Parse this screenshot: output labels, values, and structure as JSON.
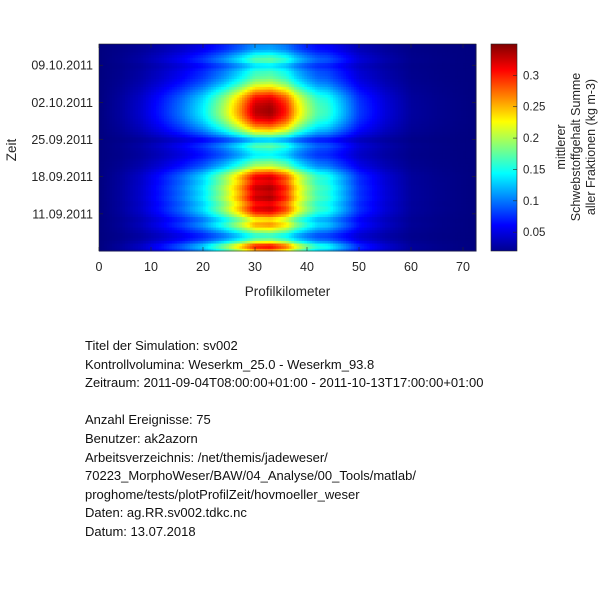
{
  "chart_data": {
    "type": "heatmap",
    "xlabel": "Profilkilometer",
    "ylabel": "Zeit",
    "x_ticks": [
      0,
      10,
      20,
      30,
      40,
      50,
      60,
      70
    ],
    "xlim": [
      0,
      72.5
    ],
    "y_ticks": [
      "11.09.2011",
      "18.09.2011",
      "25.09.2011",
      "02.10.2011",
      "09.10.2011"
    ],
    "ylim": [
      "2011-09-04",
      "2011-10-13"
    ],
    "colorbar": {
      "label_lines": [
        "mittlerer",
        "Schwebstoffgehalt Summe",
        "aller Fraktionen (kg m-3)"
      ],
      "ticks": [
        0.05,
        0.1,
        0.15,
        0.2,
        0.25,
        0.3
      ],
      "tick_labels": [
        "0.05",
        "0.1",
        "0.15",
        "0.2",
        "0.25",
        "0.3"
      ],
      "range": [
        0.02,
        0.35
      ],
      "colormap": "jet"
    },
    "bands": [
      {
        "t": "2011-09-04",
        "a": 0.72
      },
      {
        "t": "2011-09-05",
        "a": 0.95
      },
      {
        "t": "2011-09-06",
        "a": 0.55
      },
      {
        "t": "2011-09-07",
        "a": 0.42
      },
      {
        "t": "2011-09-08",
        "a": 0.6
      },
      {
        "t": "2011-09-09",
        "a": 0.78
      },
      {
        "t": "2011-09-10",
        "a": 0.65
      },
      {
        "t": "2011-09-11",
        "a": 0.85
      },
      {
        "t": "2011-09-12",
        "a": 0.97
      },
      {
        "t": "2011-09-13",
        "a": 0.9
      },
      {
        "t": "2011-09-14",
        "a": 1.0
      },
      {
        "t": "2011-09-15",
        "a": 0.95
      },
      {
        "t": "2011-09-16",
        "a": 1.0
      },
      {
        "t": "2011-09-17",
        "a": 0.92
      },
      {
        "t": "2011-09-18",
        "a": 0.96
      },
      {
        "t": "2011-09-19",
        "a": 0.8
      },
      {
        "t": "2011-09-20",
        "a": 0.58
      },
      {
        "t": "2011-09-21",
        "a": 0.5
      },
      {
        "t": "2011-09-22",
        "a": 0.38
      },
      {
        "t": "2011-09-23",
        "a": 0.42
      },
      {
        "t": "2011-09-24",
        "a": 0.5
      },
      {
        "t": "2011-09-25",
        "a": 0.3
      },
      {
        "t": "2011-09-26",
        "a": 0.55
      },
      {
        "t": "2011-09-27",
        "a": 0.72
      },
      {
        "t": "2011-09-28",
        "a": 0.85
      },
      {
        "t": "2011-09-29",
        "a": 0.95
      },
      {
        "t": "2011-09-30",
        "a": 1.0
      },
      {
        "t": "2011-10-01",
        "a": 1.0
      },
      {
        "t": "2011-10-02",
        "a": 0.97
      },
      {
        "t": "2011-10-03",
        "a": 0.92
      },
      {
        "t": "2011-10-04",
        "a": 0.8
      },
      {
        "t": "2011-10-05",
        "a": 0.66
      },
      {
        "t": "2011-10-06",
        "a": 0.55
      },
      {
        "t": "2011-10-07",
        "a": 0.48
      },
      {
        "t": "2011-10-08",
        "a": 0.45
      },
      {
        "t": "2011-10-09",
        "a": 0.35
      },
      {
        "t": "2011-10-10",
        "a": 0.5
      },
      {
        "t": "2011-10-11",
        "a": 0.42
      },
      {
        "t": "2011-10-12",
        "a": 0.3
      },
      {
        "t": "2011-10-13",
        "a": 0.28
      }
    ],
    "profile": [
      {
        "km": 0,
        "v": 0.02
      },
      {
        "km": 4,
        "v": 0.03
      },
      {
        "km": 8,
        "v": 0.045
      },
      {
        "km": 12,
        "v": 0.07
      },
      {
        "km": 16,
        "v": 0.1
      },
      {
        "km": 20,
        "v": 0.14
      },
      {
        "km": 24,
        "v": 0.2
      },
      {
        "km": 27,
        "v": 0.26
      },
      {
        "km": 30,
        "v": 0.33
      },
      {
        "km": 33,
        "v": 0.34
      },
      {
        "km": 36,
        "v": 0.3
      },
      {
        "km": 38,
        "v": 0.24
      },
      {
        "km": 40,
        "v": 0.2
      },
      {
        "km": 42,
        "v": 0.17
      },
      {
        "km": 44,
        "v": 0.16
      },
      {
        "km": 47,
        "v": 0.12
      },
      {
        "km": 50,
        "v": 0.08
      },
      {
        "km": 55,
        "v": 0.05
      },
      {
        "km": 60,
        "v": 0.03
      },
      {
        "km": 65,
        "v": 0.025
      },
      {
        "km": 72.5,
        "v": 0.02
      }
    ]
  },
  "info": {
    "title_line": "Titel der Simulation: sv002",
    "volumes_line": "Kontrollvolumina: Weserkm_25.0 - Weserkm_93.8",
    "period_line": "Zeitraum: 2011-09-04T08:00:00+01:00 - 2011-10-13T17:00:00+01:00",
    "events_line": "Anzahl Ereignisse: 75",
    "user_line": "Benutzer: ak2azorn",
    "dir_line_1": "Arbeitsverzeichnis: /net/themis/jadeweser/",
    "dir_line_2": "70223_MorphoWeser/BAW/04_Analyse/00_Tools/matlab/",
    "dir_line_3": "proghome/tests/plotProfilZeit/hovmoeller_weser",
    "data_line": "Daten: ag.RR.sv002.tdkc.nc",
    "date_line": "Datum: 13.07.2018"
  }
}
